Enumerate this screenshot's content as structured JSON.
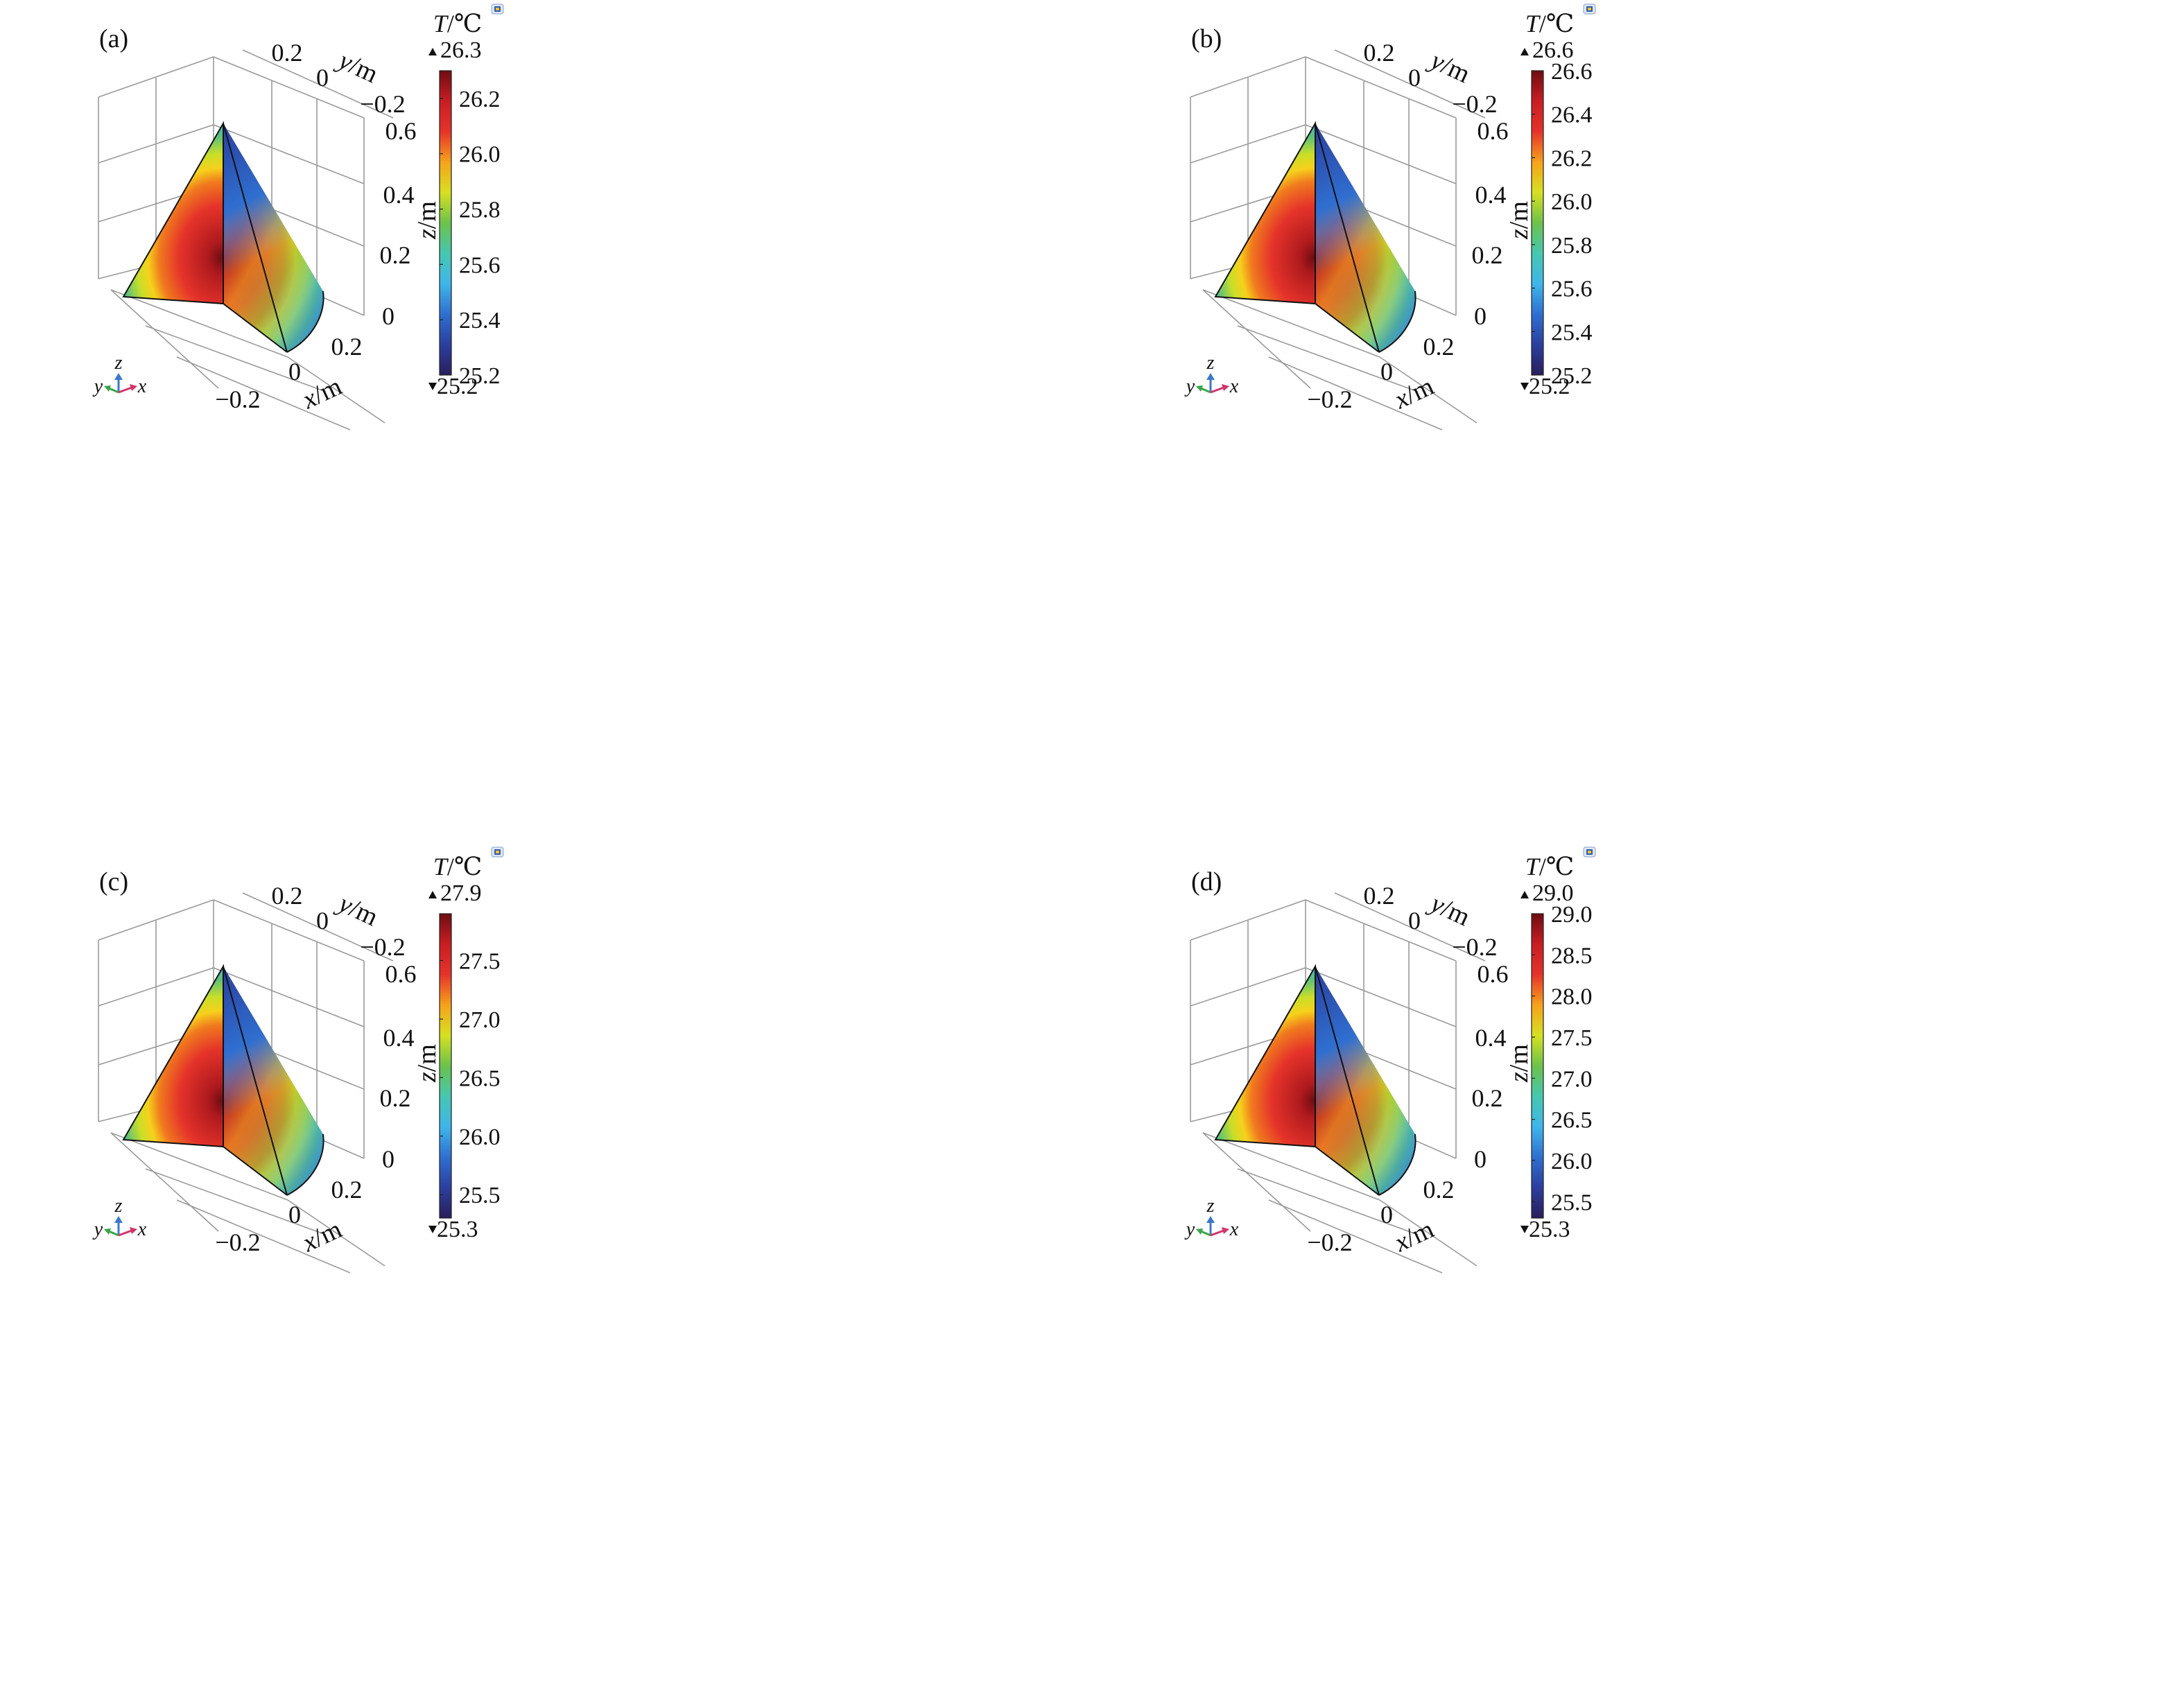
{
  "chart_data": [
    {
      "type": "heatmap",
      "panel_label": "(a)",
      "colorbar": {
        "title": "T/℃",
        "max_label": "26.3",
        "min_label": "25.2",
        "range": [
          25.2,
          26.3
        ],
        "ticks": [
          "25.2",
          "25.4",
          "25.6",
          "25.8",
          "26.0",
          "26.2"
        ]
      },
      "axes": {
        "x": {
          "label": "x/m",
          "ticks": [
            "−0.2",
            "0",
            "0.2"
          ]
        },
        "y": {
          "label": "y/m",
          "ticks": [
            "0.2",
            "0",
            "−0.2"
          ]
        },
        "z": {
          "label": "z/m",
          "ticks": [
            "0",
            "0.2",
            "0.4",
            "0.6"
          ]
        }
      }
    },
    {
      "type": "heatmap",
      "panel_label": "(b)",
      "colorbar": {
        "title": "T/℃",
        "max_label": "26.6",
        "min_label": "25.2",
        "range": [
          25.2,
          26.6
        ],
        "ticks": [
          "25.2",
          "25.4",
          "25.6",
          "25.8",
          "26.0",
          "26.2",
          "26.4",
          "26.6"
        ]
      },
      "axes": {
        "x": {
          "label": "x/m",
          "ticks": [
            "−0.2",
            "0",
            "0.2"
          ]
        },
        "y": {
          "label": "y/m",
          "ticks": [
            "0.2",
            "0",
            "−0.2"
          ]
        },
        "z": {
          "label": "z/m",
          "ticks": [
            "0",
            "0.2",
            "0.4",
            "0.6"
          ]
        }
      }
    },
    {
      "type": "heatmap",
      "panel_label": "(c)",
      "colorbar": {
        "title": "T/℃",
        "max_label": "27.9",
        "min_label": "25.3",
        "range": [
          25.3,
          27.9
        ],
        "ticks": [
          "25.5",
          "26.0",
          "26.5",
          "27.0",
          "27.5"
        ]
      },
      "axes": {
        "x": {
          "label": "x/m",
          "ticks": [
            "−0.2",
            "0",
            "0.2"
          ]
        },
        "y": {
          "label": "y/m",
          "ticks": [
            "0.2",
            "0",
            "−0.2"
          ]
        },
        "z": {
          "label": "z/m",
          "ticks": [
            "0",
            "0.2",
            "0.4",
            "0.6"
          ]
        }
      }
    },
    {
      "type": "heatmap",
      "panel_label": "(d)",
      "colorbar": {
        "title": "T/℃",
        "max_label": "29.0",
        "min_label": "25.3",
        "range": [
          25.3,
          29.0
        ],
        "ticks": [
          "25.5",
          "26.0",
          "26.5",
          "27.0",
          "27.5",
          "28.0",
          "28.5",
          "29.0"
        ]
      },
      "axes": {
        "x": {
          "label": "x/m",
          "ticks": [
            "−0.2",
            "0",
            "0.2"
          ]
        },
        "y": {
          "label": "y/m",
          "ticks": [
            "0.2",
            "0",
            "−0.2"
          ]
        },
        "z": {
          "label": "z/m",
          "ticks": [
            "0",
            "0.2",
            "0.4",
            "0.6"
          ]
        }
      }
    }
  ],
  "triad": {
    "z": "z",
    "y": "y",
    "x": "x"
  },
  "colors": {
    "colormap": [
      "#2a1e5c",
      "#2b3f9e",
      "#2f6fd0",
      "#3fb6ea",
      "#46c7b0",
      "#6cc24a",
      "#d6e022",
      "#f6a21b",
      "#e5332a",
      "#c81e23",
      "#6e0d12"
    ],
    "edge": "#111111",
    "grid": "#9a9a9a"
  }
}
